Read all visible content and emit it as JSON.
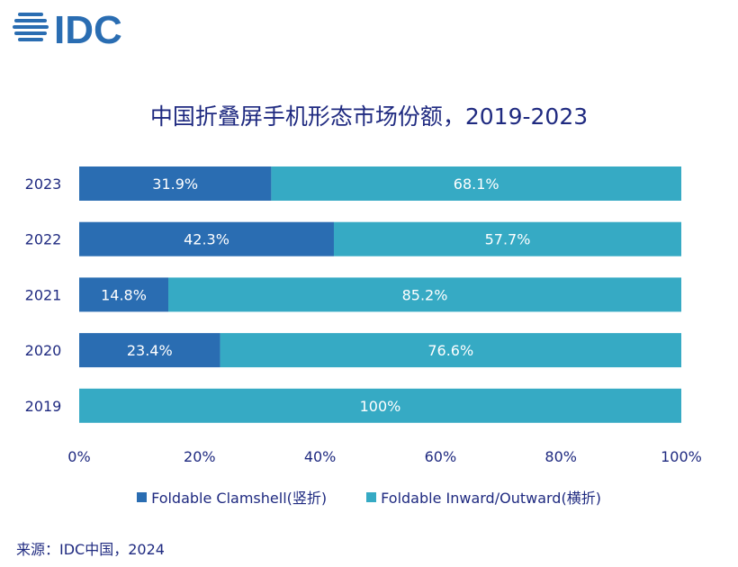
{
  "logo_text": "IDC",
  "chart_data": {
    "type": "bar",
    "orientation": "horizontal",
    "stacked": true,
    "title": "中国折叠屏手机形态市场份额，2019-2023",
    "categories": [
      "2023",
      "2022",
      "2021",
      "2020",
      "2019"
    ],
    "series": [
      {
        "name": "Foldable Clamshell(竖折)",
        "values": [
          31.9,
          42.3,
          14.8,
          23.4,
          0
        ],
        "labels": [
          "31.9%",
          "42.3%",
          "14.8%",
          "23.4%",
          ""
        ],
        "color": "#2a6db2"
      },
      {
        "name": "Foldable Inward/Outward(横折)",
        "values": [
          68.1,
          57.7,
          85.2,
          76.6,
          100
        ],
        "labels": [
          "68.1%",
          "57.7%",
          "85.2%",
          "76.6%",
          "100%"
        ],
        "color": "#36aac4"
      }
    ],
    "xlim": [
      0,
      100
    ],
    "xticks": [
      "0%",
      "20%",
      "40%",
      "60%",
      "80%",
      "100%"
    ],
    "grid": false,
    "legend_position": "bottom"
  },
  "source": "来源：IDC中国，2024"
}
